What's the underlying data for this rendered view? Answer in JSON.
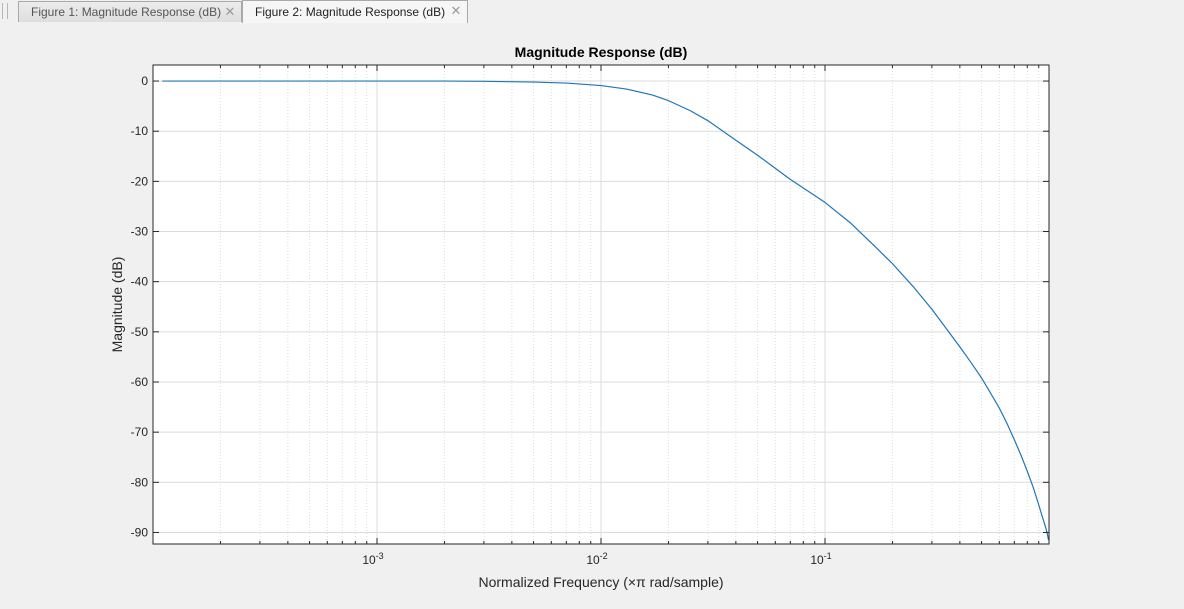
{
  "tabs": [
    {
      "label": "Figure 1: Magnitude Response (dB)",
      "active": false,
      "close_icon": "close-icon"
    },
    {
      "label": "Figure 2: Magnitude Response (dB)",
      "active": true,
      "close_icon": "close-icon"
    }
  ],
  "colors": {
    "line": "#1f77b4",
    "grid": "#dcdcdc",
    "axes_bg": "#ffffff",
    "figure_bg": "#f0f0f0"
  },
  "chart_data": {
    "type": "line",
    "title": "Magnitude Response (dB)",
    "xlabel": "Normalized Frequency (×π rad/sample)",
    "ylabel": "Magnitude (dB)",
    "xscale": "log",
    "xlim": [
      0.0001,
      1.0
    ],
    "ylim": [
      -92.3,
      3.2
    ],
    "xtick_labels": [
      {
        "value": 0.001,
        "base": "10",
        "exp": "-3"
      },
      {
        "value": 0.01,
        "base": "10",
        "exp": "-2"
      },
      {
        "value": 0.1,
        "base": "10",
        "exp": "-1"
      }
    ],
    "yticks": [
      0,
      -10,
      -20,
      -30,
      -40,
      -50,
      -60,
      -70,
      -80,
      -90
    ],
    "grid": true,
    "minor_grid": true,
    "series": [
      {
        "x": [
          0.00011,
          0.0002,
          0.0005,
          0.001,
          0.002,
          0.003,
          0.005,
          0.007,
          0.01,
          0.013,
          0.017,
          0.02,
          0.025,
          0.03,
          0.04,
          0.05,
          0.07,
          0.1,
          0.13,
          0.17,
          0.2,
          0.25,
          0.3,
          0.35,
          0.4,
          0.45,
          0.5,
          0.55,
          0.6,
          0.65,
          0.7,
          0.75,
          0.8,
          0.85,
          0.9,
          0.93,
          0.96,
          0.98,
          0.995
        ],
        "y": [
          0,
          0,
          0,
          0,
          0,
          -0.05,
          -0.2,
          -0.4,
          -0.9,
          -1.6,
          -2.8,
          -3.9,
          -5.9,
          -7.9,
          -11.8,
          -14.8,
          -19.6,
          -24.2,
          -28.3,
          -33.3,
          -36.4,
          -41.2,
          -45.5,
          -49.5,
          -53.0,
          -56.2,
          -59.2,
          -62.3,
          -65.2,
          -68.3,
          -71.5,
          -74.6,
          -77.8,
          -81.0,
          -84.5,
          -86.6,
          -88.6,
          -90.0,
          -91.5
        ]
      }
    ]
  }
}
